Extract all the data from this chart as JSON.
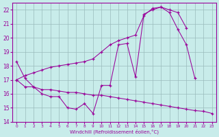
{
  "xlabel": "Windchill (Refroidissement éolien,°C)",
  "background_color": "#c8ecea",
  "grid_color": "#99bbbb",
  "line_color": "#990099",
  "xlim": [
    -0.5,
    23.5
  ],
  "ylim": [
    14,
    22.5
  ],
  "yticks": [
    14,
    15,
    16,
    17,
    18,
    19,
    20,
    21,
    22
  ],
  "xticks": [
    0,
    1,
    2,
    3,
    4,
    5,
    6,
    7,
    8,
    9,
    10,
    11,
    12,
    13,
    14,
    15,
    16,
    17,
    18,
    19,
    20,
    21,
    22,
    23
  ],
  "curve1_x": [
    0,
    1,
    2,
    3,
    4,
    5,
    6,
    7,
    8,
    9,
    10,
    11,
    12,
    13,
    14,
    15,
    16,
    17,
    18,
    19,
    20,
    21
  ],
  "curve1_y": [
    18.3,
    17.1,
    16.5,
    16.0,
    15.8,
    15.8,
    15.0,
    14.9,
    15.3,
    14.6,
    16.6,
    16.6,
    19.5,
    19.6,
    17.2,
    21.7,
    22.0,
    22.2,
    21.8,
    20.6,
    19.5,
    17.1
  ],
  "curve2_x": [
    0,
    1,
    2,
    3,
    4,
    5,
    6,
    7,
    8,
    9,
    10,
    11,
    12,
    13,
    14,
    15,
    16,
    17,
    18,
    19,
    20,
    21,
    22,
    23
  ],
  "curve2_y": [
    17.0,
    16.5,
    16.5,
    16.3,
    16.3,
    16.2,
    16.1,
    16.1,
    16.0,
    15.9,
    15.9,
    15.8,
    15.7,
    15.6,
    15.5,
    15.4,
    15.3,
    15.2,
    15.1,
    15.0,
    14.9,
    14.8,
    14.75,
    14.6
  ],
  "curve3_x": [
    0,
    1,
    2,
    3,
    4,
    5,
    6,
    7,
    8,
    9,
    10,
    11,
    12,
    13,
    14,
    15,
    16,
    17,
    18,
    19,
    20
  ],
  "curve3_y": [
    17.0,
    17.3,
    17.5,
    17.7,
    17.9,
    18.0,
    18.1,
    18.2,
    18.3,
    18.5,
    19.0,
    19.5,
    19.8,
    20.0,
    20.2,
    21.6,
    22.1,
    22.2,
    22.0,
    21.8,
    20.7
  ]
}
